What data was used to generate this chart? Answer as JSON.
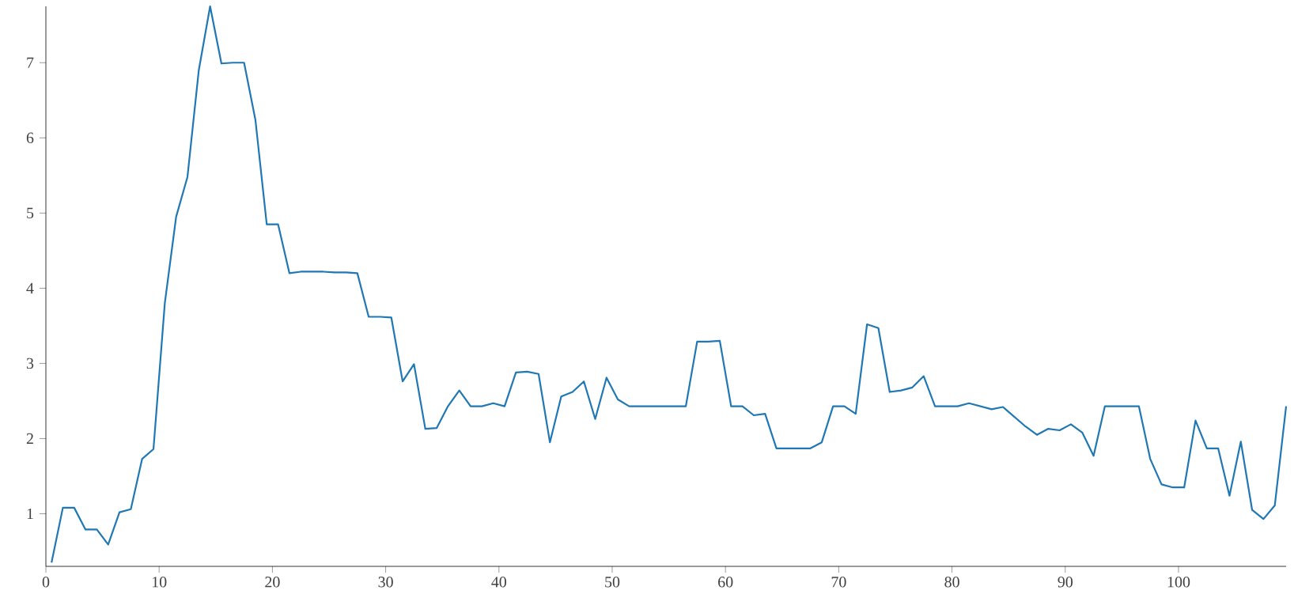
{
  "chart_data": {
    "type": "line",
    "x": [
      0.5,
      1.5,
      2.5,
      3.5,
      4.5,
      5.5,
      6.5,
      7.5,
      8.5,
      9.5,
      10.5,
      11.5,
      12.5,
      13.5,
      14.5,
      15.5,
      16.5,
      17.5,
      18.5,
      19.5,
      20.5,
      21.5,
      22.5,
      23.5,
      24.5,
      25.5,
      26.5,
      27.5,
      28.5,
      29.5,
      30.5,
      31.5,
      32.5,
      33.5,
      34.5,
      35.5,
      36.5,
      37.5,
      38.5,
      39.5,
      40.5,
      41.5,
      42.5,
      43.5,
      44.5,
      45.5,
      46.5,
      47.5,
      48.5,
      49.5,
      50.5,
      51.5,
      52.5,
      53.5,
      54.5,
      55.5,
      56.5,
      57.5,
      58.5,
      59.5,
      60.5,
      61.5,
      62.5,
      63.5,
      64.5,
      65.5,
      66.5,
      67.5,
      68.5,
      69.5,
      70.5,
      71.5,
      72.5,
      73.5,
      74.5,
      75.5,
      76.5,
      77.5,
      78.5,
      79.5,
      80.5,
      81.5,
      82.5,
      83.5,
      84.5,
      85.5,
      86.5,
      87.5,
      88.5,
      89.5,
      90.5,
      91.5,
      92.5,
      93.5,
      94.5,
      95.5,
      96.5,
      97.5,
      98.5,
      99.5,
      100.5,
      101.5,
      102.5,
      103.5,
      104.5,
      105.5,
      106.5,
      107.5,
      108.5,
      109.5
    ],
    "series": [
      {
        "color": "#1f77b4",
        "values": [
          0.35,
          1.08,
          1.08,
          0.79,
          0.79,
          0.59,
          1.02,
          1.06,
          1.73,
          1.86,
          3.8,
          4.95,
          5.48,
          6.9,
          7.75,
          6.99,
          7.0,
          7.0,
          6.24,
          4.85,
          4.85,
          4.2,
          4.22,
          4.22,
          4.22,
          4.21,
          4.21,
          4.2,
          3.62,
          3.62,
          3.61,
          2.76,
          2.99,
          2.13,
          2.14,
          2.43,
          2.64,
          2.43,
          2.43,
          2.47,
          2.43,
          2.88,
          2.89,
          2.86,
          1.95,
          2.56,
          2.62,
          2.76,
          2.26,
          2.81,
          2.52,
          2.43,
          2.43,
          2.43,
          2.43,
          2.43,
          2.43,
          3.29,
          3.29,
          3.3,
          2.43,
          2.43,
          2.31,
          2.33,
          1.87,
          1.87,
          1.87,
          1.87,
          1.95,
          2.43,
          2.43,
          2.33,
          3.52,
          3.47,
          2.62,
          2.64,
          2.68,
          2.83,
          2.43,
          2.43,
          2.43,
          2.47,
          2.43,
          2.39,
          2.42,
          2.29,
          2.16,
          2.05,
          2.13,
          2.11,
          2.19,
          2.08,
          1.77,
          2.43,
          2.43,
          2.43,
          2.43,
          1.73,
          1.39,
          1.35,
          1.35,
          2.24,
          1.87,
          1.87,
          1.24,
          1.96,
          1.05,
          0.93,
          1.11,
          2.43
        ]
      }
    ],
    "xlim": [
      0,
      109.5
    ],
    "xticks": [
      0,
      10,
      20,
      30,
      40,
      50,
      60,
      70,
      80,
      90,
      100
    ],
    "ylim": [
      0.3,
      7.75
    ],
    "yticks": [
      1,
      2,
      3,
      4,
      5,
      6,
      7
    ],
    "grid": false,
    "marker": "none",
    "line_style": "solid"
  }
}
